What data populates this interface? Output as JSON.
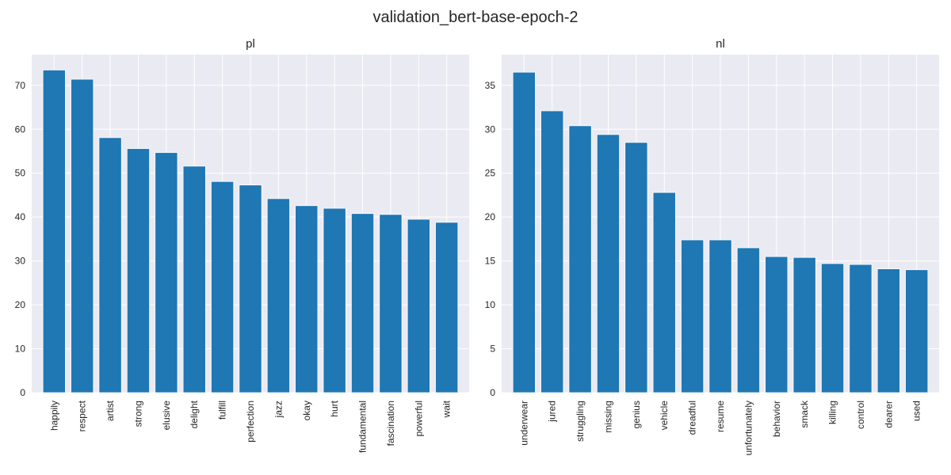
{
  "figure": {
    "title": "validation_bert-base-epoch-2"
  },
  "chart_data": [
    {
      "type": "bar",
      "title": "pl",
      "xlabel": "",
      "ylabel": "",
      "ylim": [
        0,
        77
      ],
      "yticks": [
        0,
        10,
        20,
        30,
        40,
        50,
        60,
        70
      ],
      "grid": true,
      "bar_color": "#1f77b4",
      "categories": [
        "happily",
        "respect",
        "artist",
        "strong",
        "elusive",
        "delight",
        "fulfill",
        "perfection",
        "jazz",
        "okay",
        "hurt",
        "fundamental",
        "fascination",
        "powerful",
        "wait"
      ],
      "values": [
        73.5,
        71.4,
        58.1,
        55.6,
        54.7,
        51.6,
        48.1,
        47.3,
        44.2,
        42.6,
        42.0,
        40.8,
        40.6,
        39.5,
        38.8
      ]
    },
    {
      "type": "bar",
      "title": "nl",
      "xlabel": "",
      "ylabel": "",
      "ylim": [
        0,
        38.5
      ],
      "yticks": [
        0,
        5,
        10,
        15,
        20,
        25,
        30,
        35
      ],
      "grid": true,
      "bar_color": "#1f77b4",
      "categories": [
        "underwear",
        "jured",
        "struggling",
        "missing",
        "genius",
        "vehicle",
        "dreadful",
        "resume",
        "unfortunately",
        "behavior",
        "smack",
        "killing",
        "control",
        "dearer",
        "used"
      ],
      "values": [
        36.5,
        32.1,
        30.4,
        29.4,
        28.5,
        22.8,
        17.4,
        17.4,
        16.5,
        15.5,
        15.4,
        14.7,
        14.6,
        14.1,
        14.0
      ]
    }
  ]
}
